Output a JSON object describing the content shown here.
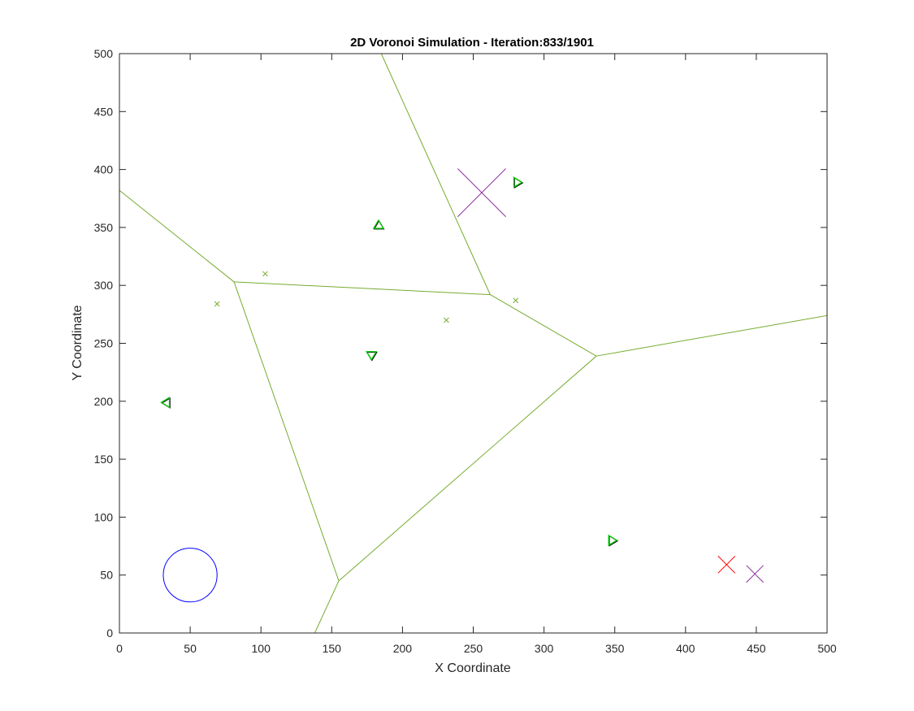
{
  "chart_data": {
    "type": "scatter",
    "title": "2D Voronoi Simulation - Iteration:833/1901",
    "xlabel": "X Coordinate",
    "ylabel": "Y Coordinate",
    "xlim": [
      0,
      500
    ],
    "ylim": [
      0,
      500
    ],
    "xticks": [
      "0",
      "50",
      "100",
      "150",
      "200",
      "250",
      "300",
      "350",
      "400",
      "450",
      "500"
    ],
    "yticks": [
      "0",
      "50",
      "100",
      "150",
      "200",
      "250",
      "300",
      "350",
      "400",
      "450",
      "500"
    ],
    "grid": false,
    "colors": {
      "voronoi_edges": "#77ac30",
      "agents": "#00cc00",
      "agent_outline": "#000000",
      "centroids": "#77ac30",
      "obstacle": "#0000ff",
      "target_purple": "#8b2f9e",
      "target_red": "#ff0000"
    },
    "voronoi_edges": [
      [
        [
          0,
          382
        ],
        [
          81,
          303
        ]
      ],
      [
        [
          81,
          303
        ],
        [
          262,
          292
        ]
      ],
      [
        [
          185,
          500
        ],
        [
          262,
          292
        ]
      ],
      [
        [
          262,
          292
        ],
        [
          337,
          239
        ]
      ],
      [
        [
          337,
          239
        ],
        [
          500,
          274
        ]
      ],
      [
        [
          337,
          239
        ],
        [
          155,
          45
        ]
      ],
      [
        [
          81,
          303
        ],
        [
          155,
          45
        ]
      ],
      [
        [
          155,
          45
        ],
        [
          138,
          0
        ]
      ]
    ],
    "agents": [
      {
        "x": 183,
        "y": 352,
        "orientation": "up"
      },
      {
        "x": 281,
        "y": 389,
        "orientation": "right"
      },
      {
        "x": 178,
        "y": 240,
        "orientation": "down"
      },
      {
        "x": 33,
        "y": 199,
        "orientation": "left"
      },
      {
        "x": 348,
        "y": 80,
        "orientation": "right"
      }
    ],
    "centroids": [
      {
        "x": 103,
        "y": 310
      },
      {
        "x": 69,
        "y": 284
      },
      {
        "x": 231,
        "y": 270
      },
      {
        "x": 280,
        "y": 287
      }
    ],
    "obstacles": [
      {
        "x": 50,
        "y": 50,
        "r": 19
      }
    ],
    "targets": [
      {
        "x": 256,
        "y": 380,
        "half_size": 17,
        "color": "#8b2f9e"
      },
      {
        "x": 429,
        "y": 59,
        "half_size": 6,
        "color": "#ff0000"
      },
      {
        "x": 449,
        "y": 51,
        "half_size": 6,
        "color": "#8b2f9e"
      }
    ]
  }
}
